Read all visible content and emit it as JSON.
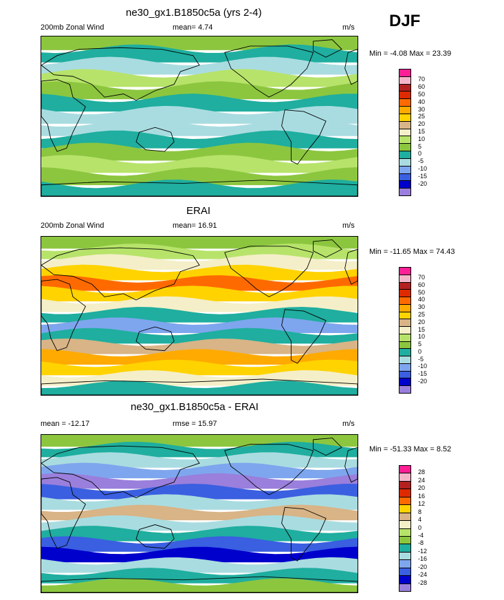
{
  "season": "DJF",
  "colors": {
    "c_neg20": "#9a7fdc",
    "c_neg15": "#0000cc",
    "c_neg10": "#3a5fe0",
    "c_neg5": "#7ea6ee",
    "c_0": "#a9dce0",
    "c_5": "#1fae9f",
    "c_10": "#8cc63f",
    "c_15": "#b7e36a",
    "c_20": "#f4efc8",
    "c_25": "#d8b486",
    "c_30": "#ffd300",
    "c_35": "#ffaa00",
    "c_40": "#ff6a00",
    "c_50": "#dd2a00",
    "c_60": "#b32020",
    "c_65": "#f5b5c8",
    "c_70": "#ff1f95"
  },
  "panels": [
    {
      "title": "ne30_gx1.B1850c5a (yrs 2-4)",
      "left_label": "200mb Zonal Wind",
      "center_label": "mean=   4.74",
      "units": "m/s",
      "minmax": "Min =  -4.08 Max =  23.39",
      "levels": [
        "70",
        "60",
        "50",
        "40",
        "30",
        "25",
        "20",
        "15",
        "10",
        "5",
        "0",
        "-5",
        "-10",
        "-15",
        "-20"
      ],
      "bands": [
        "c_10",
        "c_5",
        "c_0",
        "c_15",
        "c_10",
        "c_5",
        "c_0",
        "c_0",
        "c_5",
        "c_10",
        "c_15",
        "c_10",
        "c_5"
      ]
    },
    {
      "title": "ERAI",
      "left_label": "200mb Zonal Wind",
      "center_label": "mean=  16.91",
      "units": "m/s",
      "minmax": "Min = -11.65 Max =  74.43",
      "levels": [
        "70",
        "60",
        "50",
        "40",
        "30",
        "25",
        "20",
        "15",
        "10",
        "5",
        "0",
        "-5",
        "-10",
        "-15",
        "-20"
      ],
      "bands": [
        "c_10",
        "c_15",
        "c_20",
        "c_30",
        "c_40",
        "c_30",
        "c_20",
        "c_5",
        "c_neg5",
        "c_5",
        "c_25",
        "c_35",
        "c_30",
        "c_20",
        "c_5"
      ]
    },
    {
      "title": "ne30_gx1.B1850c5a - ERAI",
      "left_label": "mean = -12.17",
      "center_label": "rmse =  15.97",
      "units": "m/s",
      "minmax": "Min = -51.33 Max =   8.52",
      "levels": [
        "28",
        "24",
        "20",
        "16",
        "12",
        "8",
        "4",
        "0",
        "-4",
        "-8",
        "-12",
        "-16",
        "-20",
        "-24",
        "-28"
      ],
      "bands": [
        "c_10",
        "c_5",
        "c_0",
        "c_neg5",
        "c_neg20",
        "c_neg10",
        "c_0",
        "c_25",
        "c_0",
        "c_5",
        "c_neg10",
        "c_neg15",
        "c_0",
        "c_5",
        "c_10"
      ]
    }
  ],
  "cbar_colors_wind": [
    "c_70",
    "c_65",
    "c_60",
    "c_50",
    "c_40",
    "c_35",
    "c_30",
    "c_25",
    "c_20",
    "c_15",
    "c_10",
    "c_5",
    "c_0",
    "c_neg5",
    "c_neg10",
    "c_neg15",
    "c_neg20"
  ],
  "cbar_colors_diff": [
    "c_70",
    "c_65",
    "c_60",
    "c_50",
    "c_40",
    "c_30",
    "c_25",
    "c_20",
    "c_15",
    "c_10",
    "c_5",
    "c_0",
    "c_neg5",
    "c_neg10",
    "c_neg15",
    "c_neg20"
  ]
}
